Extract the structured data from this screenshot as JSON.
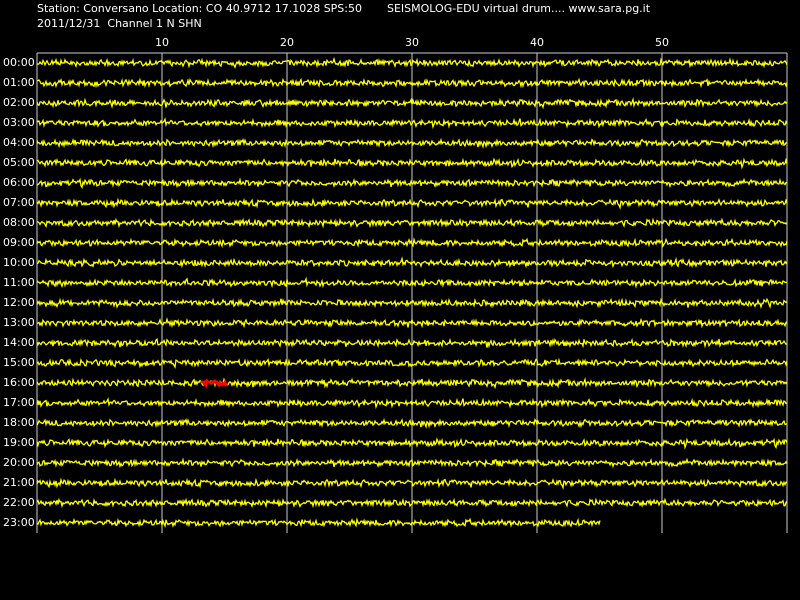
{
  "header": {
    "station": "Station: Conversano Location: CO 40.9712 17.1028 SPS:50",
    "program": "SEISMOLOG-EDU virtual drum.... www.sara.pg.it",
    "date_channel": "2011/12/31  Channel 1 N SHN"
  },
  "x_axis": {
    "ticks": [
      "10",
      "20",
      "30",
      "40",
      "50"
    ]
  },
  "rows": {
    "labels": [
      "00:00",
      "01:00",
      "02:00",
      "03:00",
      "04:00",
      "05:00",
      "06:00",
      "07:00",
      "08:00",
      "09:00",
      "10:00",
      "11:00",
      "12:00",
      "13:00",
      "14:00",
      "15:00",
      "16:00",
      "17:00",
      "18:00",
      "19:00",
      "20:00",
      "21:00",
      "22:00",
      "23:00"
    ]
  }
}
